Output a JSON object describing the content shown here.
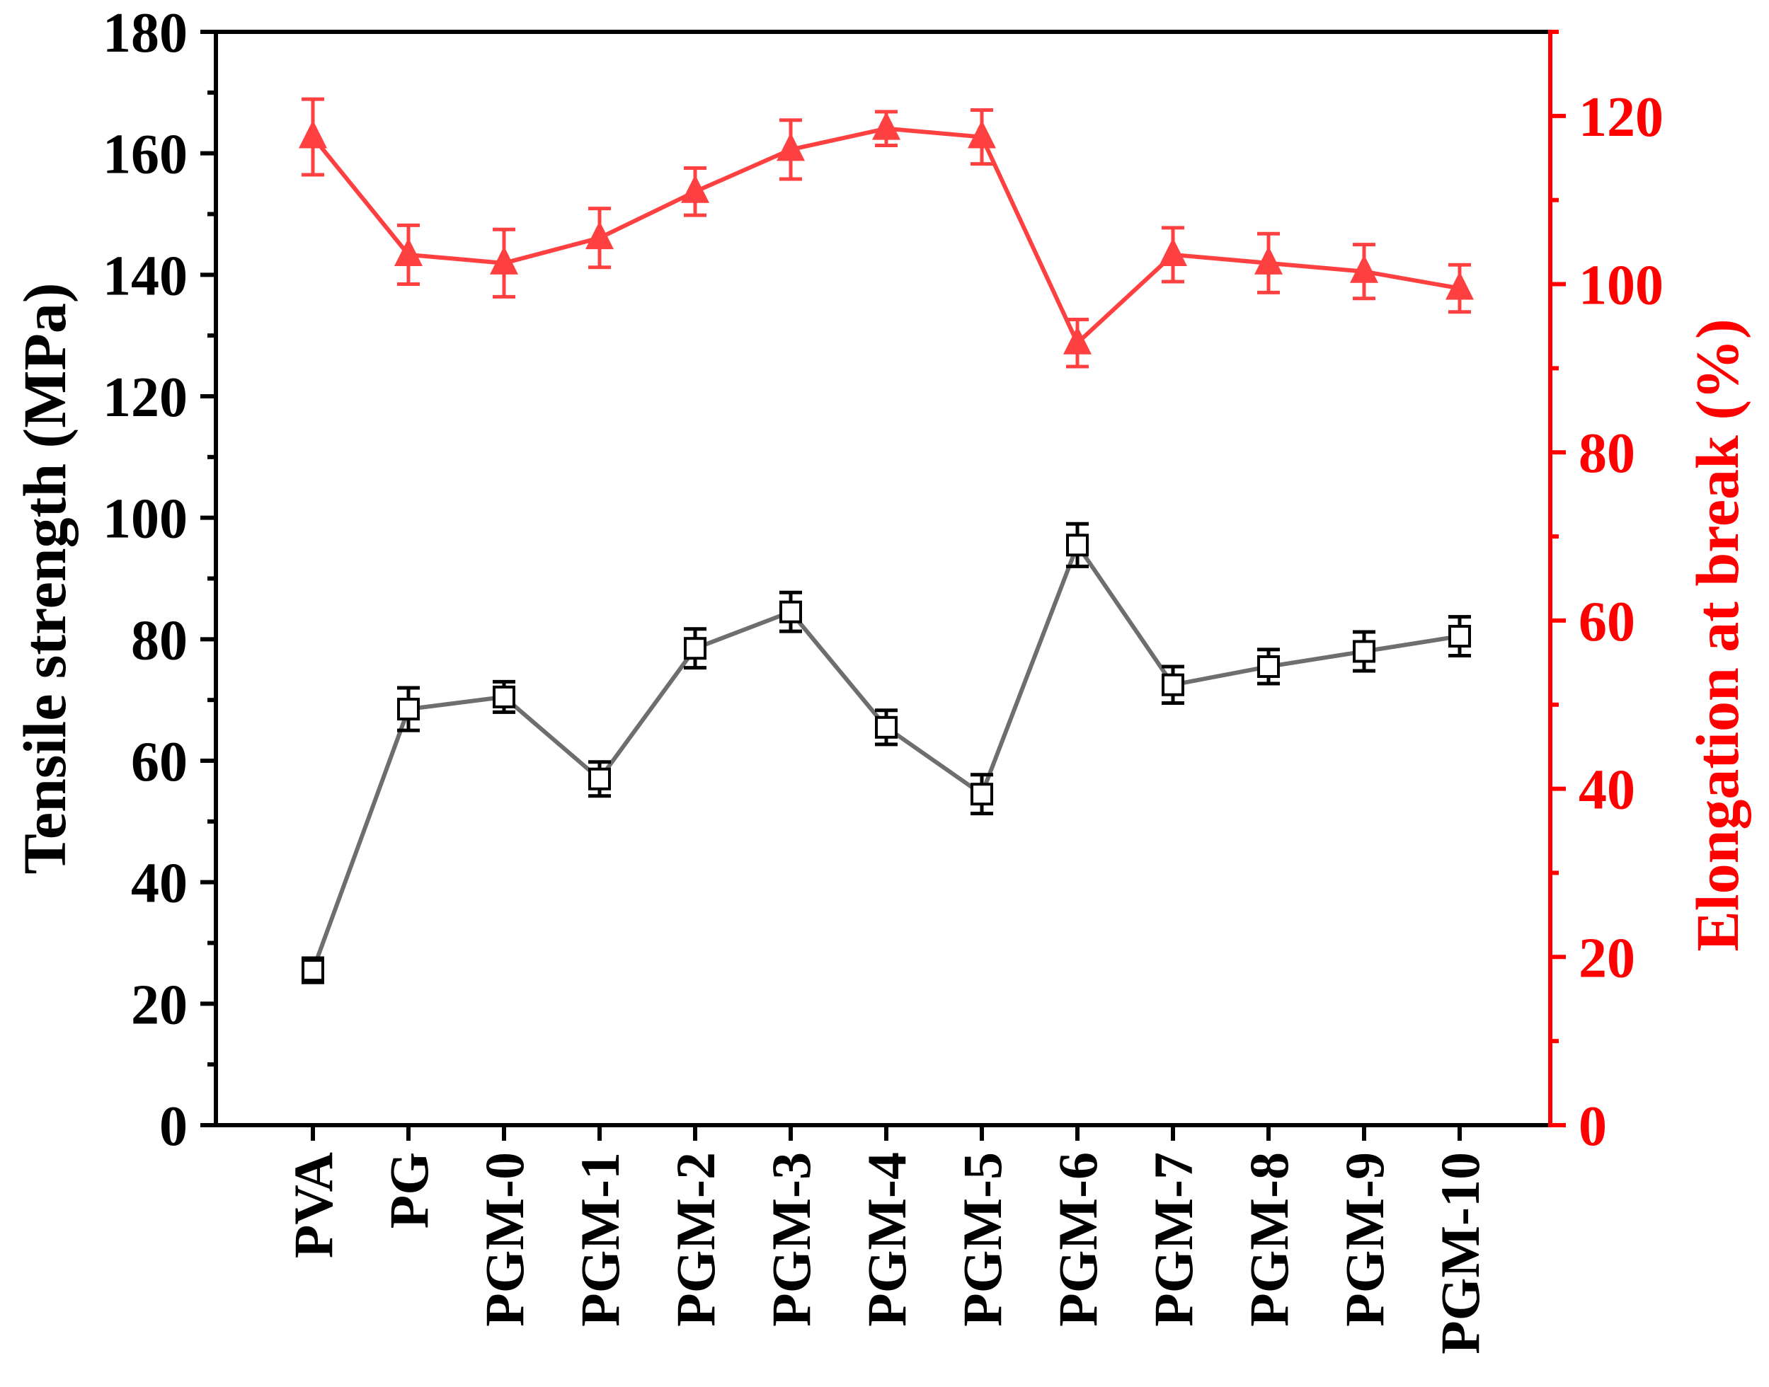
{
  "chart_data": {
    "type": "line",
    "categories": [
      "PVA",
      "PG",
      "PGM-0",
      "PGM-1",
      "PGM-2",
      "PGM-3",
      "PGM-4",
      "PGM-5",
      "PGM-6",
      "PGM-7",
      "PGM-8",
      "PGM-9",
      "PGM-10"
    ],
    "left_axis": {
      "label": "Tensile strength (MPa)",
      "ylim": [
        0,
        180
      ],
      "ticks": [
        "0",
        "20",
        "40",
        "60",
        "80",
        "100",
        "120",
        "140",
        "160",
        "180"
      ],
      "color": "#000000"
    },
    "right_axis": {
      "label": "Elongation at break (%)",
      "ylim": [
        0,
        130
      ],
      "ticks": [
        "0",
        "20",
        "40",
        "60",
        "80",
        "100",
        "120"
      ],
      "color": "#ff0000"
    },
    "series": [
      {
        "axis": "left",
        "marker": "open-square",
        "line_color": "#6e6e6e",
        "marker_color": "#000000",
        "values": [
          25.5,
          68.5,
          70.5,
          57,
          78.5,
          84.5,
          65.5,
          54.5,
          95.5,
          72.5,
          75.5,
          78,
          80.5
        ],
        "errors": [
          2,
          3.5,
          2.5,
          2.8,
          3.2,
          3.2,
          2.8,
          3.2,
          3.5,
          3,
          2.8,
          3.2,
          3.2
        ]
      },
      {
        "axis": "right",
        "marker": "filled-triangle",
        "line_color": "#ff4040",
        "marker_color": "#ff4040",
        "values": [
          117.5,
          103.5,
          102.5,
          105.5,
          111,
          116,
          118.5,
          117.5,
          93,
          103.5,
          102.5,
          101.5,
          99.5
        ],
        "errors": [
          4.5,
          3.5,
          4,
          3.5,
          2.8,
          3.5,
          2,
          3.2,
          2.8,
          3.2,
          3.5,
          3.2,
          2.8
        ]
      }
    ]
  }
}
